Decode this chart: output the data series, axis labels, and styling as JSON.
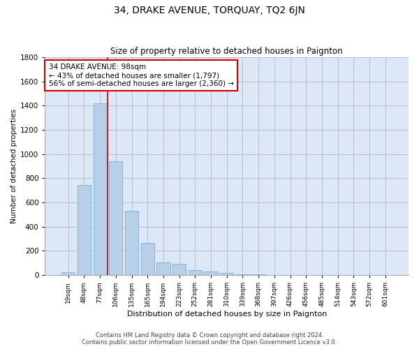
{
  "title": "34, DRAKE AVENUE, TORQUAY, TQ2 6JN",
  "subtitle": "Size of property relative to detached houses in Paignton",
  "xlabel": "Distribution of detached houses by size in Paignton",
  "ylabel": "Number of detached properties",
  "footer_line1": "Contains HM Land Registry data © Crown copyright and database right 2024.",
  "footer_line2": "Contains public sector information licensed under the Open Government Licence v3.0.",
  "bar_color": "#b8cfe8",
  "bar_edge_color": "#7aadd4",
  "grid_color": "#bbbbcc",
  "bg_color": "#dce8f5",
  "annotation_box_color": "#cc0000",
  "vline_color": "#cc0000",
  "categories": [
    "19sqm",
    "48sqm",
    "77sqm",
    "106sqm",
    "135sqm",
    "165sqm",
    "194sqm",
    "223sqm",
    "252sqm",
    "281sqm",
    "310sqm",
    "339sqm",
    "368sqm",
    "397sqm",
    "426sqm",
    "456sqm",
    "485sqm",
    "514sqm",
    "543sqm",
    "572sqm",
    "601sqm"
  ],
  "values": [
    22,
    742,
    1422,
    940,
    530,
    265,
    105,
    93,
    38,
    28,
    18,
    5,
    5,
    3,
    1,
    1,
    0,
    0,
    1,
    0,
    0
  ],
  "vline_x": 2.5,
  "annotation_text": "34 DRAKE AVENUE: 98sqm\n← 43% of detached houses are smaller (1,797)\n56% of semi-detached houses are larger (2,360) →",
  "ylim": [
    0,
    1800
  ],
  "yticks": [
    0,
    200,
    400,
    600,
    800,
    1000,
    1200,
    1400,
    1600,
    1800
  ]
}
